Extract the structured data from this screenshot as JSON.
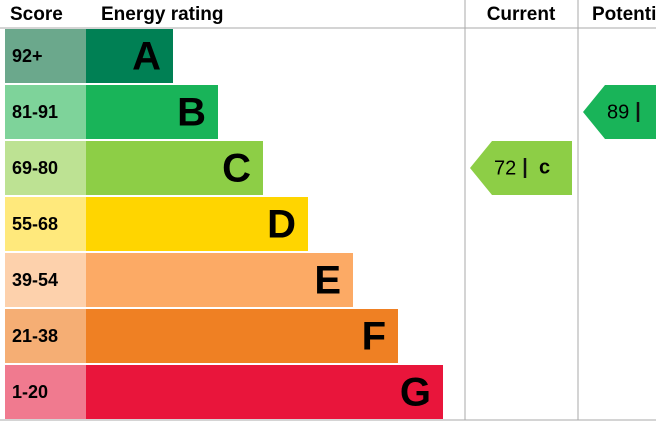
{
  "header": {
    "score": "Score",
    "rating": "Energy rating",
    "current": "Current",
    "potential": "Potential"
  },
  "rows": [
    {
      "score": "92+",
      "letter": "A",
      "color": "#008054",
      "tint": "#6ba88c"
    },
    {
      "score": "81-91",
      "letter": "B",
      "color": "#19b459",
      "tint": "#7ed39a"
    },
    {
      "score": "69-80",
      "letter": "C",
      "color": "#8dce46",
      "tint": "#bde293"
    },
    {
      "score": "55-68",
      "letter": "D",
      "color": "#ffd500",
      "tint": "#ffe97c"
    },
    {
      "score": "39-54",
      "letter": "E",
      "color": "#fcaa65",
      "tint": "#fdd1ac"
    },
    {
      "score": "21-38",
      "letter": "F",
      "color": "#ef8023",
      "tint": "#f5ae74"
    },
    {
      "score": "1-20",
      "letter": "G",
      "color": "#e9153b",
      "tint": "#f07a8f"
    }
  ],
  "current": {
    "value": 72,
    "letter": "c",
    "row": 2
  },
  "potential": {
    "value": 89,
    "row": 1
  }
}
